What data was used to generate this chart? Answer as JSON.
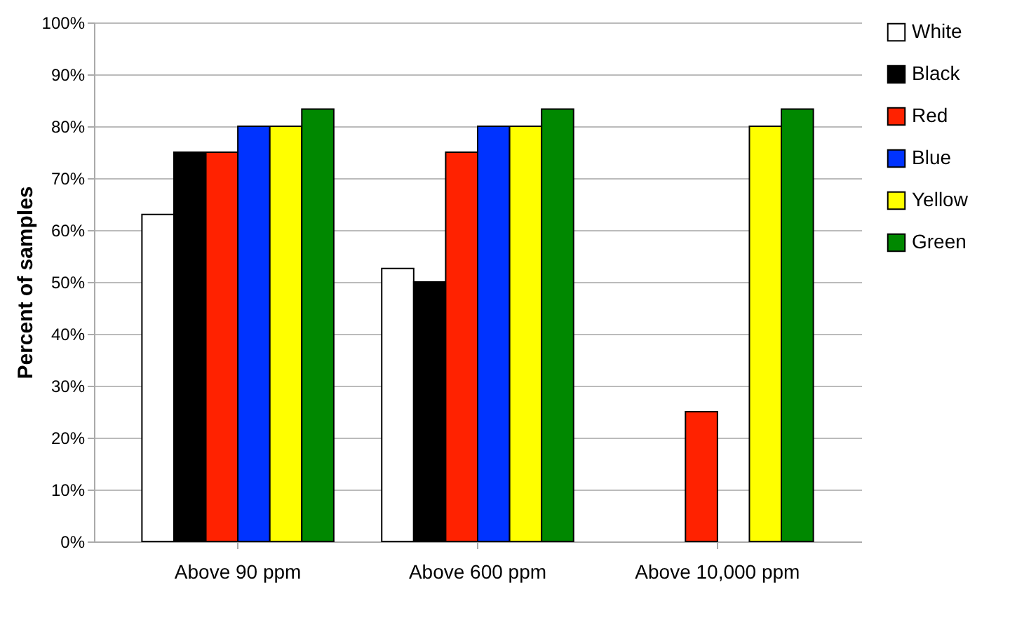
{
  "chart_data": {
    "type": "bar",
    "ylabel": "Percent of samples",
    "categories": [
      "Above 90 ppm",
      "Above 600 ppm",
      "Above 10,000 ppm"
    ],
    "series": [
      {
        "name": "White",
        "color": "#ffffff",
        "values": [
          63,
          52.6,
          null
        ]
      },
      {
        "name": "Black",
        "color": "#000000",
        "values": [
          75,
          50,
          null
        ]
      },
      {
        "name": "Red",
        "color": "#ff2200",
        "values": [
          75,
          75,
          25
        ]
      },
      {
        "name": "Blue",
        "color": "#0033ff",
        "values": [
          80,
          80,
          null
        ]
      },
      {
        "name": "Yellow",
        "color": "#ffff00",
        "values": [
          80,
          80,
          80
        ]
      },
      {
        "name": "Green",
        "color": "#008800",
        "values": [
          83.3,
          83.3,
          83.3
        ]
      }
    ],
    "ylim": [
      0,
      100
    ],
    "yticks": [
      {
        "value": 0,
        "label": "0%"
      },
      {
        "value": 10,
        "label": "10%"
      },
      {
        "value": 20,
        "label": "20%"
      },
      {
        "value": 30,
        "label": "30%"
      },
      {
        "value": 40,
        "label": "40%"
      },
      {
        "value": 50,
        "label": "50%"
      },
      {
        "value": 60,
        "label": "60%"
      },
      {
        "value": 70,
        "label": "70%"
      },
      {
        "value": 80,
        "label": "80%"
      },
      {
        "value": 90,
        "label": "90%"
      },
      {
        "value": 100,
        "label": "100%"
      }
    ],
    "grid": "y",
    "legend": "right"
  }
}
